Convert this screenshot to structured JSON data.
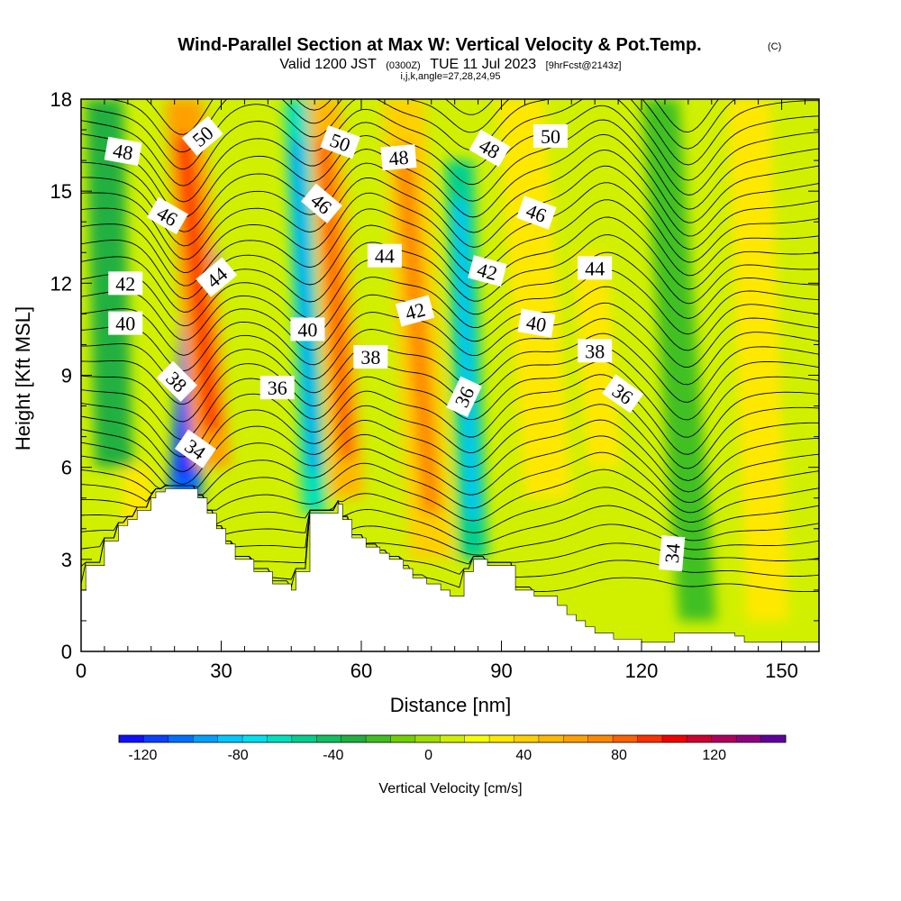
{
  "chart_data": {
    "type": "heatmap",
    "title": "Wind-Parallel Section at Max W: Vertical Velocity & Pot.Temp.",
    "title_mark": "(C)",
    "subtitle": {
      "valid": "Valid 1200 JST",
      "utc": "(0300Z)",
      "date": "TUE 11 Jul 2023",
      "run": "[9hrFcst@2143z]"
    },
    "indices": "i,j,k,angle=27,28,24,95",
    "xlabel": "Distance [nm]",
    "ylabel": "Height [Kft MSL]",
    "xlim": [
      0,
      158
    ],
    "ylim": [
      0,
      18
    ],
    "xticks": [
      0,
      30,
      60,
      90,
      120,
      150
    ],
    "yticks": [
      0,
      3,
      6,
      9,
      12,
      15,
      18
    ],
    "grid": false,
    "colorbar": {
      "label": "Vertical Velocity [cm/s]",
      "tick_labels": [
        "-120",
        "-80",
        "-40",
        "0",
        "40",
        "80",
        "120"
      ],
      "tick_values": [
        -120,
        -80,
        -40,
        0,
        40,
        80,
        120
      ],
      "range": [
        -130,
        150
      ],
      "colors": [
        "#1010ff",
        "#0a40ff",
        "#0070ff",
        "#00a0ff",
        "#00c8ff",
        "#00e0f0",
        "#00e0c0",
        "#00d090",
        "#10c060",
        "#20b040",
        "#40c020",
        "#70d000",
        "#a0e000",
        "#d0f000",
        "#f8ff00",
        "#ffe800",
        "#ffd000",
        "#ffb800",
        "#ffa000",
        "#ff8800",
        "#ff6000",
        "#ff3000",
        "#f00000",
        "#d00030",
        "#b00060",
        "#900080",
        "#6000a0"
      ]
    },
    "terrain_profile": {
      "x": [
        0,
        1,
        1,
        5,
        5,
        8,
        8,
        10,
        10,
        12,
        12,
        15,
        15,
        16,
        16,
        18,
        18,
        20,
        20,
        25,
        25,
        27,
        27,
        29,
        29,
        31,
        31,
        33,
        33,
        37,
        37,
        41,
        41,
        45,
        45,
        46,
        46,
        49,
        49,
        55,
        55,
        56,
        56,
        58,
        58,
        61,
        61,
        64,
        64,
        66,
        66,
        69,
        69,
        71,
        71,
        74,
        74,
        77,
        77,
        79,
        79,
        82,
        82,
        84,
        84,
        87,
        87,
        93,
        93,
        97,
        97,
        102,
        102,
        104,
        104,
        106,
        106,
        108,
        108,
        110,
        110,
        114,
        114,
        120,
        120,
        125,
        125,
        127,
        127,
        130,
        130,
        137,
        137,
        140,
        140,
        142,
        142,
        148,
        148,
        158
      ],
      "height": [
        2,
        2,
        2.8,
        2.8,
        3.6,
        3.6,
        4.1,
        4.1,
        4.3,
        4.3,
        4.6,
        4.6,
        5.0,
        5.0,
        5.2,
        5.2,
        5.3,
        5.3,
        5.3,
        5.3,
        5.0,
        5.0,
        4.5,
        4.5,
        4.0,
        4.0,
        3.5,
        3.5,
        3.0,
        3.0,
        2.6,
        2.6,
        2.2,
        2.2,
        2.0,
        2.0,
        2.6,
        2.6,
        4.5,
        4.5,
        4.8,
        4.8,
        4.3,
        4.3,
        3.7,
        3.7,
        3.4,
        3.4,
        3.2,
        3.2,
        3.0,
        3.0,
        2.7,
        2.7,
        2.4,
        2.4,
        2.2,
        2.2,
        2.0,
        2.0,
        1.8,
        1.8,
        2.6,
        2.6,
        3.0,
        3.0,
        2.8,
        2.8,
        2.0,
        2.0,
        1.8,
        1.8,
        1.5,
        1.5,
        1.2,
        1.2,
        1.0,
        1.0,
        0.8,
        0.8,
        0.6,
        0.6,
        0.4,
        0.4,
        0.3,
        0.3,
        0.3,
        0.3,
        0.6,
        0.6,
        0.6,
        0.6,
        0.6,
        0.6,
        0.5,
        0.5,
        0.3,
        0.3,
        0.3,
        0.3
      ]
    },
    "velocity_bands": [
      {
        "x": 22,
        "width": 7,
        "value": -100,
        "y_from": 4.8,
        "y_to": 13,
        "tilt": 4
      },
      {
        "x": 28,
        "width": 8,
        "value": 60,
        "y_from": 6,
        "y_to": 18,
        "tilt": -6
      },
      {
        "x": 50,
        "width": 5,
        "value": -60,
        "y_from": 4.5,
        "y_to": 18,
        "tilt": -4
      },
      {
        "x": 57,
        "width": 7,
        "value": 50,
        "y_from": 5,
        "y_to": 18,
        "tilt": -5
      },
      {
        "x": 75,
        "width": 9,
        "value": 45,
        "y_from": 3,
        "y_to": 18,
        "tilt": -6
      },
      {
        "x": 84,
        "width": 6,
        "value": -50,
        "y_from": 3,
        "y_to": 16,
        "tilt": -3
      },
      {
        "x": 100,
        "width": 10,
        "value": 35,
        "y_from": 5,
        "y_to": 18,
        "tilt": -6
      },
      {
        "x": 112,
        "width": 7,
        "value": 30,
        "y_from": 6,
        "y_to": 13,
        "tilt": -3
      },
      {
        "x": 132,
        "width": 8,
        "value": -20,
        "y_from": 1,
        "y_to": 18,
        "tilt": -8
      },
      {
        "x": 147,
        "width": 9,
        "value": 35,
        "y_from": 1,
        "y_to": 18,
        "tilt": -4
      },
      {
        "x": 7,
        "width": 8,
        "value": -30,
        "y_from": 6,
        "y_to": 18,
        "tilt": -2
      },
      {
        "x": 12,
        "width": 6,
        "value": 30,
        "y_from": 2.5,
        "y_to": 6,
        "tilt": 0
      }
    ],
    "background_value": 8,
    "isentropes": [
      34,
      36,
      38,
      40,
      42,
      44,
      46,
      48,
      50
    ],
    "contour_labels": [
      {
        "text": "50",
        "x": 26,
        "y": 16.8,
        "angle": -40
      },
      {
        "text": "50",
        "x": 55.5,
        "y": 16.6,
        "angle": 20
      },
      {
        "text": "50",
        "x": 100.5,
        "y": 16.8,
        "angle": 0
      },
      {
        "text": "48",
        "x": 9,
        "y": 16.3,
        "angle": 10
      },
      {
        "text": "48",
        "x": 68,
        "y": 16.1,
        "angle": -5
      },
      {
        "text": "48",
        "x": 87.5,
        "y": 16.4,
        "angle": 30
      },
      {
        "text": "46",
        "x": 18.5,
        "y": 14.2,
        "angle": 30
      },
      {
        "text": "46",
        "x": 51.5,
        "y": 14.6,
        "angle": 40
      },
      {
        "text": "46",
        "x": 97.5,
        "y": 14.3,
        "angle": 20
      },
      {
        "text": "44",
        "x": 29,
        "y": 12.2,
        "angle": -40
      },
      {
        "text": "44",
        "x": 65,
        "y": 12.9,
        "angle": 0
      },
      {
        "text": "44",
        "x": 110,
        "y": 12.5,
        "angle": 0
      },
      {
        "text": "42",
        "x": 9.5,
        "y": 12.0,
        "angle": 0
      },
      {
        "text": "42",
        "x": 71.5,
        "y": 11.1,
        "angle": -15
      },
      {
        "text": "42",
        "x": 87,
        "y": 12.4,
        "angle": 15
      },
      {
        "text": "40",
        "x": 9.5,
        "y": 10.7,
        "angle": 0
      },
      {
        "text": "40",
        "x": 48.5,
        "y": 10.5,
        "angle": 0
      },
      {
        "text": "40",
        "x": 97.5,
        "y": 10.7,
        "angle": 10
      },
      {
        "text": "38",
        "x": 20.5,
        "y": 8.8,
        "angle": 45
      },
      {
        "text": "38",
        "x": 62,
        "y": 9.6,
        "angle": 0
      },
      {
        "text": "38",
        "x": 110,
        "y": 9.8,
        "angle": 0
      },
      {
        "text": "36",
        "x": 42,
        "y": 8.6,
        "angle": 0
      },
      {
        "text": "36",
        "x": 82,
        "y": 8.3,
        "angle": -65
      },
      {
        "text": "36",
        "x": 116,
        "y": 8.4,
        "angle": 35
      },
      {
        "text": "34",
        "x": 24.5,
        "y": 6.6,
        "angle": 35
      },
      {
        "text": "34",
        "x": 126.5,
        "y": 3.2,
        "angle": -85
      }
    ]
  }
}
